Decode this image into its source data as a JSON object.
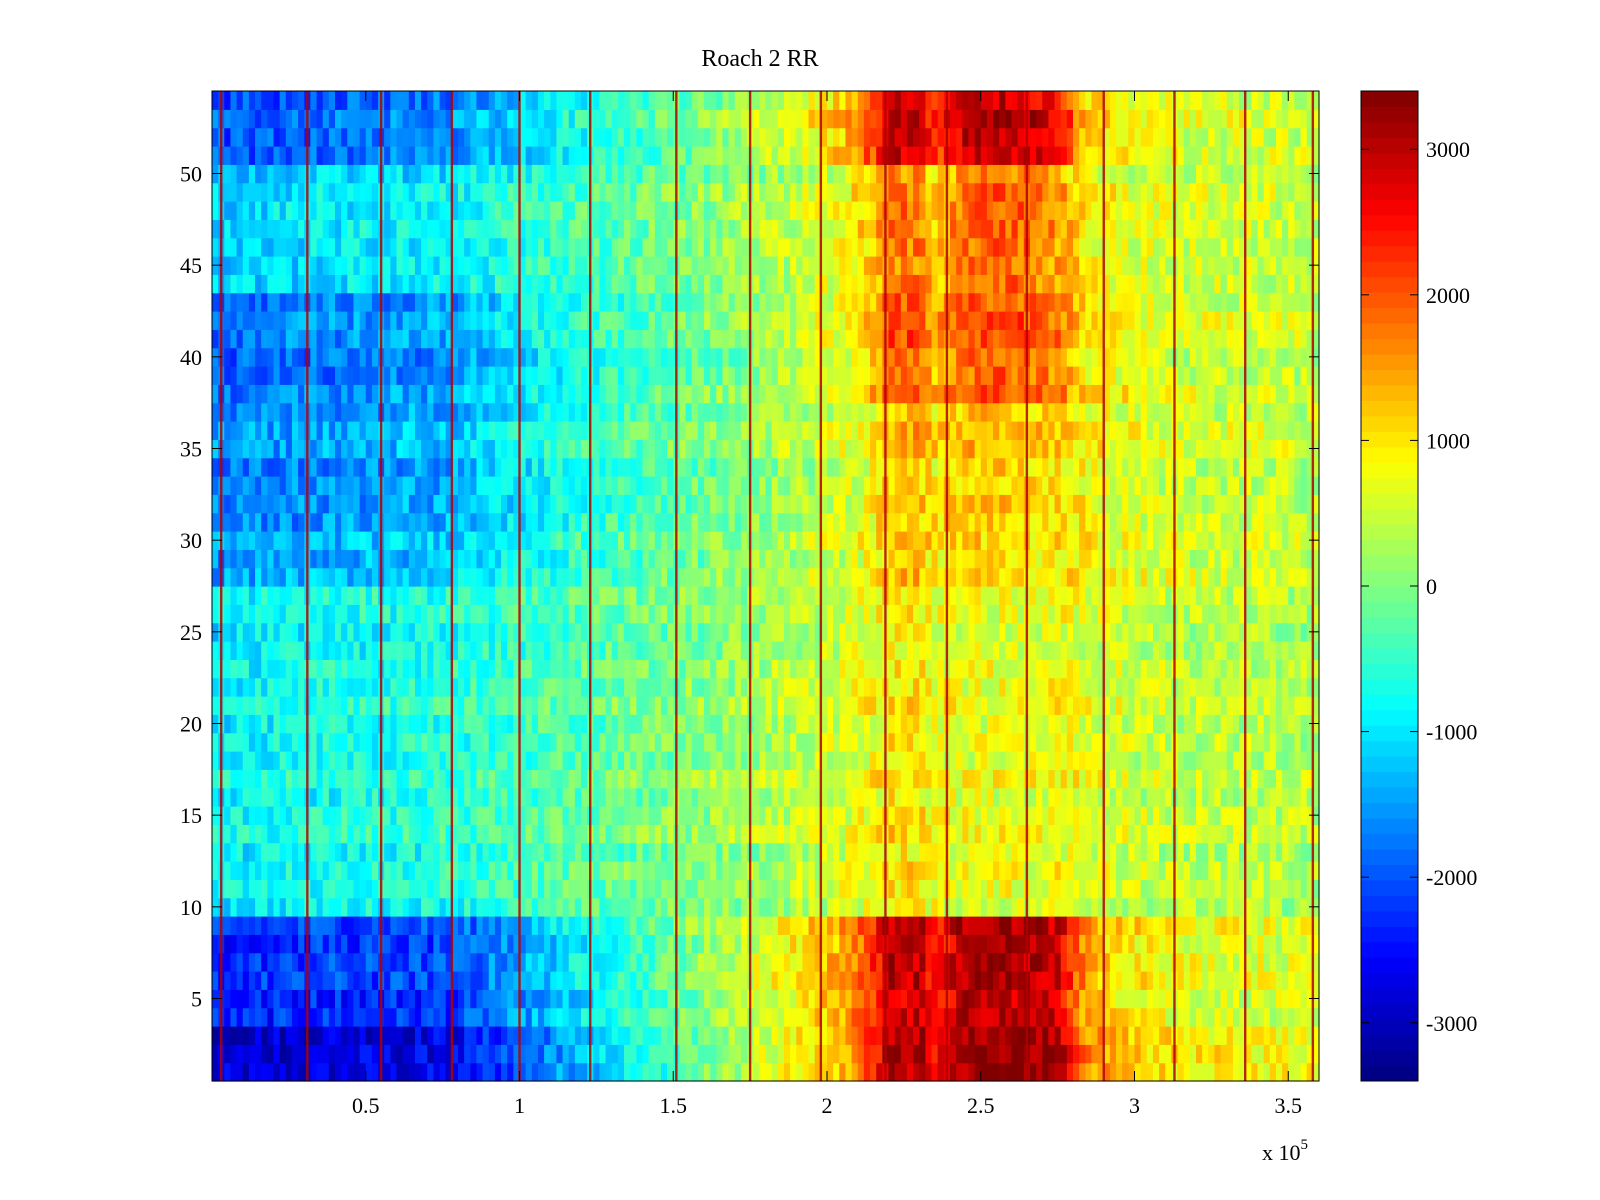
{
  "chart_data": {
    "type": "heatmap",
    "title": "Roach 2 RR",
    "xlabel": "",
    "ylabel": "",
    "x_multiplier_label": "x 10",
    "x_multiplier_exponent": "5",
    "xlim": [
      0.0,
      3.6
    ],
    "ylim": [
      0.5,
      54.5
    ],
    "x_ticks": [
      0.5,
      1,
      1.5,
      2,
      2.5,
      3,
      3.5
    ],
    "x_tick_labels": [
      "0.5",
      "1",
      "1.5",
      "2",
      "2.5",
      "3",
      "3.5"
    ],
    "y_ticks": [
      5,
      10,
      15,
      20,
      25,
      30,
      35,
      40,
      45,
      50
    ],
    "y_tick_labels": [
      "5",
      "10",
      "15",
      "20",
      "25",
      "30",
      "35",
      "40",
      "45",
      "50"
    ],
    "rows": 54,
    "colorbar": {
      "colormap": "jet",
      "clim": [
        -3400,
        3400
      ],
      "ticks": [
        -3000,
        -2000,
        -1000,
        0,
        1000,
        2000,
        3000
      ],
      "tick_labels": [
        "-3000",
        "-2000",
        "-1000",
        "0",
        "1000",
        "2000",
        "3000"
      ]
    },
    "column_profile_x": [
      0.0,
      0.2,
      0.4,
      0.6,
      0.8,
      1.0,
      1.25,
      1.5,
      1.75,
      1.9,
      2.05,
      2.15,
      2.2,
      2.3,
      2.35,
      2.45,
      2.55,
      2.65,
      2.75,
      2.85,
      3.0,
      3.2,
      3.4,
      3.6
    ],
    "row_groups": [
      {
        "name": "bottom",
        "rows": [
          1,
          2,
          3
        ],
        "values": [
          -2900,
          -2900,
          -2800,
          -2800,
          -2700,
          -2000,
          -1200,
          -500,
          400,
          800,
          1200,
          2200,
          3000,
          3100,
          2200,
          3200,
          3300,
          3300,
          3100,
          1500,
          1100,
          900,
          800,
          700
        ]
      },
      {
        "name": "lower-blue",
        "rows": [
          4,
          5,
          6,
          7,
          8,
          9
        ],
        "values": [
          -2300,
          -2300,
          -2200,
          -2200,
          -2100,
          -1500,
          -800,
          -200,
          500,
          900,
          1400,
          2200,
          2900,
          2900,
          2300,
          3000,
          3100,
          3000,
          2800,
          1300,
          900,
          700,
          600,
          500
        ]
      },
      {
        "name": "mid",
        "rows": [
          10,
          11,
          12,
          13,
          14,
          15,
          16,
          17,
          18,
          19,
          20,
          21,
          22,
          23,
          24,
          25,
          26,
          27
        ],
        "values": [
          -900,
          -800,
          -700,
          -650,
          -600,
          -400,
          -200,
          0,
          200,
          400,
          600,
          800,
          1000,
          1000,
          800,
          700,
          700,
          700,
          800,
          700,
          500,
          400,
          400,
          300
        ]
      },
      {
        "name": "row-28-30",
        "rows": [
          28,
          29,
          30
        ],
        "values": [
          -1600,
          -1500,
          -1400,
          -1300,
          -1200,
          -800,
          -500,
          -200,
          100,
          300,
          500,
          800,
          1200,
          1200,
          900,
          1000,
          1000,
          900,
          900,
          800,
          600,
          500,
          500,
          400
        ]
      },
      {
        "name": "upper-mid",
        "rows": [
          31,
          32,
          33,
          34,
          35,
          36,
          37
        ],
        "values": [
          -1700,
          -1600,
          -1500,
          -1400,
          -1300,
          -900,
          -500,
          -200,
          100,
          300,
          500,
          900,
          1300,
          1300,
          1000,
          1300,
          1300,
          1200,
          1100,
          900,
          600,
          500,
          500,
          400
        ]
      },
      {
        "name": "row-38-43",
        "rows": [
          38,
          39,
          40,
          41,
          42,
          43
        ],
        "values": [
          -1900,
          -1800,
          -1700,
          -1600,
          -1500,
          -1000,
          -600,
          -300,
          100,
          400,
          700,
          1200,
          2000,
          2000,
          1300,
          1900,
          2000,
          1900,
          1700,
          1000,
          700,
          500,
          500,
          400
        ]
      },
      {
        "name": "row-44-50",
        "rows": [
          44,
          45,
          46,
          47,
          48,
          49,
          50
        ],
        "values": [
          -1200,
          -1100,
          -1000,
          -950,
          -900,
          -600,
          -350,
          -100,
          200,
          400,
          700,
          1200,
          1700,
          1700,
          1100,
          1800,
          1900,
          1800,
          1500,
          900,
          600,
          500,
          500,
          400
        ]
      },
      {
        "name": "top",
        "rows": [
          51,
          52,
          53,
          54
        ],
        "values": [
          -2000,
          -1900,
          -1800,
          -1700,
          -1600,
          -1100,
          -600,
          -200,
          300,
          700,
          1200,
          2100,
          2900,
          2900,
          2100,
          3000,
          3000,
          2900,
          2600,
          1200,
          800,
          600,
          600,
          500
        ]
      }
    ],
    "vertical_streaks_x": [
      0.03,
      0.31,
      0.55,
      0.78,
      1.0,
      1.23,
      1.51,
      1.75,
      1.98,
      2.19,
      2.39,
      2.65,
      2.9,
      3.13,
      3.36,
      3.58
    ]
  }
}
